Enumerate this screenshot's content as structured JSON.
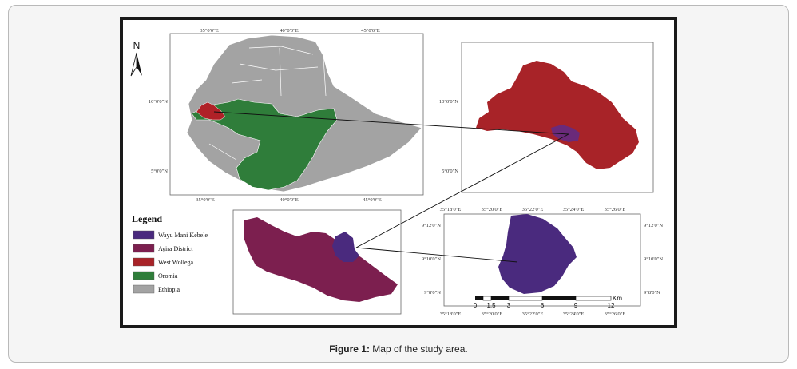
{
  "figure": {
    "caption_label": "Figure 1:",
    "caption_text": "Map of the study area."
  },
  "north_arrow": {
    "label": "N"
  },
  "ethiopia_map": {
    "top_ticks": [
      "35°0'0\"E",
      "40°0'0\"E",
      "45°0'0\"E"
    ],
    "bottom_ticks": [
      "35°0'0\"E",
      "40°0'0\"E",
      "45°0'0\"E"
    ],
    "left_ticks": [
      "10°0'0\"N",
      "5°0'0\"N"
    ]
  },
  "west_wollega_map": {
    "left_ticks": [
      "10°0'0\"N",
      "5°0'0\"N"
    ]
  },
  "wayu_map": {
    "top_ticks": [
      "35°18'0\"E",
      "35°20'0\"E",
      "35°22'0\"E",
      "35°24'0\"E",
      "35°26'0\"E"
    ],
    "bottom_ticks": [
      "35°18'0\"E",
      "35°20'0\"E",
      "35°22'0\"E",
      "35°24'0\"E",
      "35°26'0\"E"
    ],
    "left_ticks": [
      "9°12'0\"N",
      "9°10'0\"N",
      "9°8'0\"N"
    ],
    "right_ticks": [
      "9°12'0\"N",
      "9°10'0\"N",
      "9°8'0\"N"
    ]
  },
  "scale_bar": {
    "unit": "Km",
    "labels": [
      "0",
      "1.5",
      "3",
      "6",
      "9",
      "12"
    ]
  },
  "legend": {
    "title": "Legend",
    "items": [
      {
        "label": "Wayu Mani Kebele",
        "color": "#4a2a7e"
      },
      {
        "label": "Ayira District",
        "color": "#7c1f4f"
      },
      {
        "label": "West Wollega",
        "color": "#a82328"
      },
      {
        "label": "Oromia",
        "color": "#2f7d3a"
      },
      {
        "label": "Ethiopia",
        "color": "#a3a3a3"
      }
    ]
  }
}
